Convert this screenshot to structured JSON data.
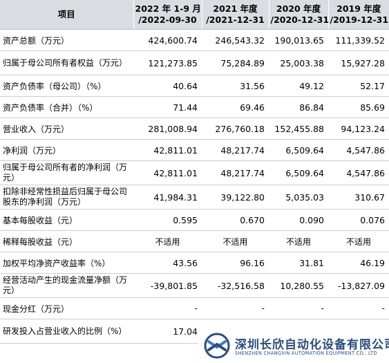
{
  "header": {
    "item": "项目",
    "periods": [
      {
        "line1": "2022 年 1-9 月",
        "line2": "/2022-09-30"
      },
      {
        "line1": "2021 年度",
        "line2": "/2021-12-31"
      },
      {
        "line1": "2020 年度",
        "line2": "/2020-12-31"
      },
      {
        "line1": "2019 年度",
        "line2": "/2019-12-31"
      }
    ]
  },
  "rows": [
    {
      "label": "资产总额（万元）",
      "values": [
        "424,600.74",
        "246,543.32",
        "190,013.65",
        "111,339.52"
      ]
    },
    {
      "label": "归属于母公司所有者权益（万元）",
      "values": [
        "121,273.85",
        "75,284.89",
        "25,003.38",
        "15,927.28"
      ]
    },
    {
      "label": "资产负债率（母公司）（%）",
      "values": [
        "40.64",
        "31.56",
        "49.12",
        "52.17"
      ]
    },
    {
      "label": "资产负债率（合并）（%）",
      "values": [
        "71.44",
        "69.46",
        "86.84",
        "85.69"
      ]
    },
    {
      "label": "营业收入（万元）",
      "values": [
        "281,008.94",
        "276,760.18",
        "152,455.88",
        "94,123.24"
      ]
    },
    {
      "label": "净利润（万元）",
      "values": [
        "42,811.01",
        "48,217.74",
        "6,509.64",
        "4,547.86"
      ]
    },
    {
      "label": "归属于母公司所有者的净利润（万元）",
      "values": [
        "42,811.01",
        "48,217.74",
        "6,509.64",
        "4,547.86"
      ]
    },
    {
      "label": "扣除非经常性损益后归属于母公司股东的净利润（万元）",
      "values": [
        "41,984.31",
        "39,122.80",
        "5,035.03",
        "310.67"
      ]
    },
    {
      "label": "基本每股收益（元）",
      "values": [
        "0.595",
        "0.670",
        "0.090",
        "0.076"
      ]
    },
    {
      "label": "稀释每股收益（元）",
      "values": [
        "不适用",
        "不适用",
        "不适用",
        "不适用"
      ]
    },
    {
      "label": "加权平均净资产收益率（%）",
      "values": [
        "43.56",
        "96.16",
        "31.81",
        "46.19"
      ]
    },
    {
      "label": "经营活动产生的现金流量净额（万元）",
      "values": [
        "-39,801.85",
        "-32,516.58",
        "10,280.55",
        "-13,827.09"
      ]
    },
    {
      "label": "现金分红（万元）",
      "values": [
        "-",
        "-",
        "-",
        "-"
      ]
    },
    {
      "label": "研发投入占营业收入的比例（%）",
      "values": [
        "17.04",
        "",
        "",
        ""
      ]
    }
  ],
  "watermark": {
    "name": "深圳长欣自动化设备有限公司",
    "english": "SHENZHEN CHANGXIN AUTOMATION EQUIPMENT CO., LTD",
    "color": "#2a4d7c"
  }
}
